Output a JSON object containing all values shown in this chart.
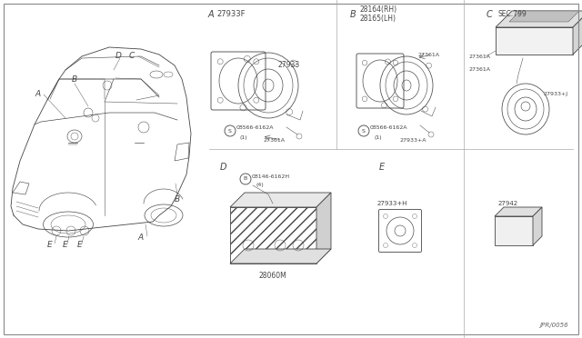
{
  "bg_color": "#ffffff",
  "line_color": "#444444",
  "footnote": "JPR/0056",
  "fig_w": 6.4,
  "fig_h": 3.72,
  "dpi": 100,
  "xlim": [
    0,
    640
  ],
  "ylim": [
    0,
    372
  ]
}
